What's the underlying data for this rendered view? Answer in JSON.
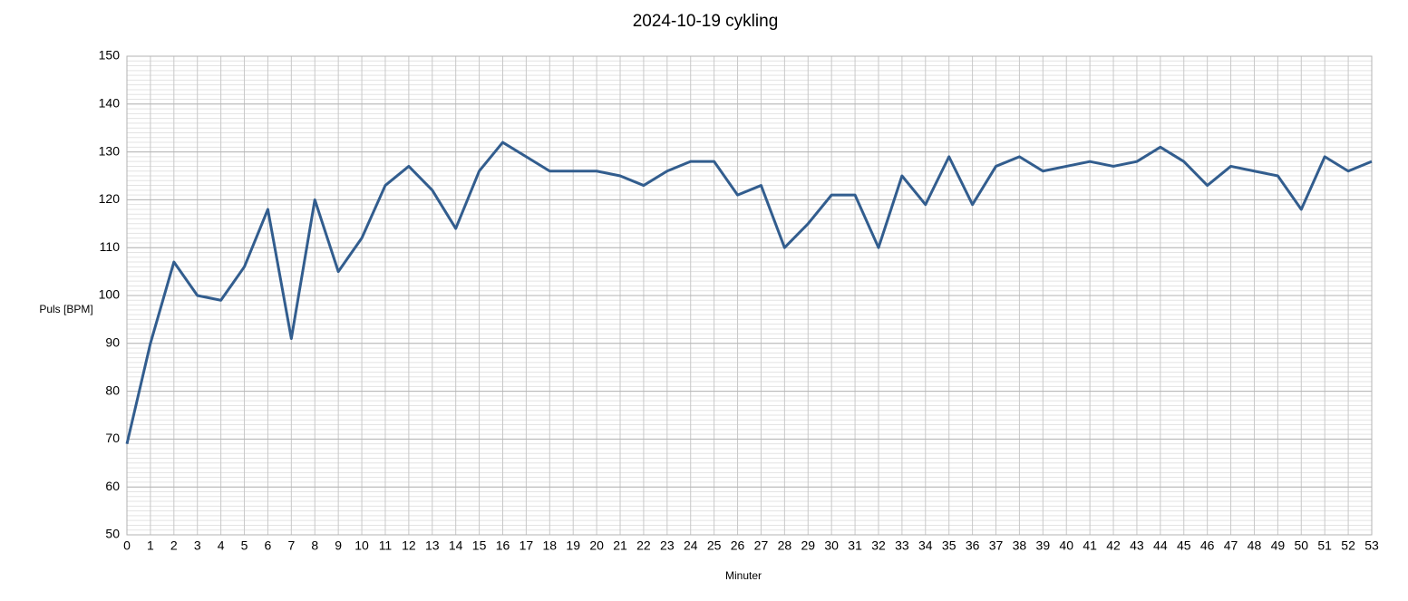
{
  "chart_data": {
    "type": "line",
    "title": "2024-10-19 cykling",
    "x_label": "Minuter",
    "y_label": "Puls [BPM]",
    "x": [
      0,
      1,
      2,
      3,
      4,
      5,
      6,
      7,
      8,
      9,
      10,
      11,
      12,
      13,
      14,
      15,
      16,
      17,
      18,
      19,
      20,
      21,
      22,
      23,
      24,
      25,
      26,
      27,
      28,
      29,
      30,
      31,
      32,
      33,
      34,
      35,
      36,
      37,
      38,
      39,
      40,
      41,
      42,
      43,
      44,
      45,
      46,
      47,
      48,
      49,
      50,
      51,
      52,
      53
    ],
    "series": [
      {
        "name": "Puls",
        "color": "#325d8e",
        "values": [
          69,
          90,
          107,
          100,
          99,
          106,
          118,
          91,
          120,
          105,
          112,
          123,
          127,
          122,
          114,
          126,
          132,
          129,
          126,
          126,
          126,
          125,
          123,
          126,
          128,
          128,
          121,
          123,
          110,
          115,
          121,
          121,
          110,
          125,
          119,
          129,
          119,
          127,
          129,
          126,
          127,
          128,
          127,
          128,
          131,
          128,
          123,
          127,
          126,
          125,
          118,
          129,
          126,
          128
        ]
      }
    ],
    "xlim": [
      0,
      53
    ],
    "xticks": [
      0,
      1,
      2,
      3,
      4,
      5,
      6,
      7,
      8,
      9,
      10,
      11,
      12,
      13,
      14,
      15,
      16,
      17,
      18,
      19,
      20,
      21,
      22,
      23,
      24,
      25,
      26,
      27,
      28,
      29,
      30,
      31,
      32,
      33,
      34,
      35,
      36,
      37,
      38,
      39,
      40,
      41,
      42,
      43,
      44,
      45,
      46,
      47,
      48,
      49,
      50,
      51,
      52,
      53
    ],
    "ylim": [
      50,
      150
    ],
    "yticks": [
      50,
      60,
      70,
      80,
      90,
      100,
      110,
      120,
      130,
      140,
      150
    ],
    "grid": true,
    "minor_ygrid_step": 1,
    "legend": false
  }
}
